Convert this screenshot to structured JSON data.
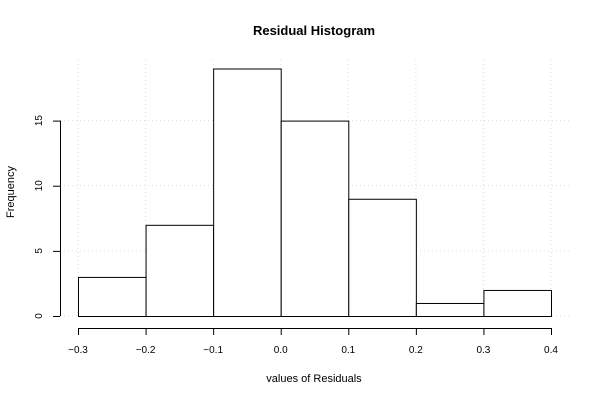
{
  "chart_data": {
    "type": "bar",
    "title": "Residual Histogram",
    "xlabel": "values of Residuals",
    "ylabel": "Frequency",
    "bins": [
      {
        "x0": -0.3,
        "x1": -0.2,
        "count": 3
      },
      {
        "x0": -0.2,
        "x1": -0.1,
        "count": 7
      },
      {
        "x0": -0.1,
        "x1": 0.0,
        "count": 19
      },
      {
        "x0": 0.0,
        "x1": 0.1,
        "count": 15
      },
      {
        "x0": 0.1,
        "x1": 0.2,
        "count": 9
      },
      {
        "x0": 0.2,
        "x1": 0.3,
        "count": 1
      },
      {
        "x0": 0.3,
        "x1": 0.4,
        "count": 2
      }
    ],
    "xlim": [
      -0.3,
      0.4
    ],
    "ylim": [
      0,
      19
    ],
    "x_ticks": [
      -0.3,
      -0.2,
      -0.1,
      0.0,
      0.1,
      0.2,
      0.3,
      0.4
    ],
    "x_tick_labels": [
      "−0.3",
      "−0.2",
      "−0.1",
      "0.0",
      "0.1",
      "0.2",
      "0.3",
      "0.4"
    ],
    "y_ticks": [
      0,
      5,
      10,
      15
    ],
    "y_tick_labels": [
      "0",
      "5",
      "10",
      "15"
    ],
    "grid": true,
    "grid_style": "dotted",
    "bar_fill": "#ffffff",
    "bar_stroke": "#000000",
    "grid_color": "#dddddd"
  }
}
